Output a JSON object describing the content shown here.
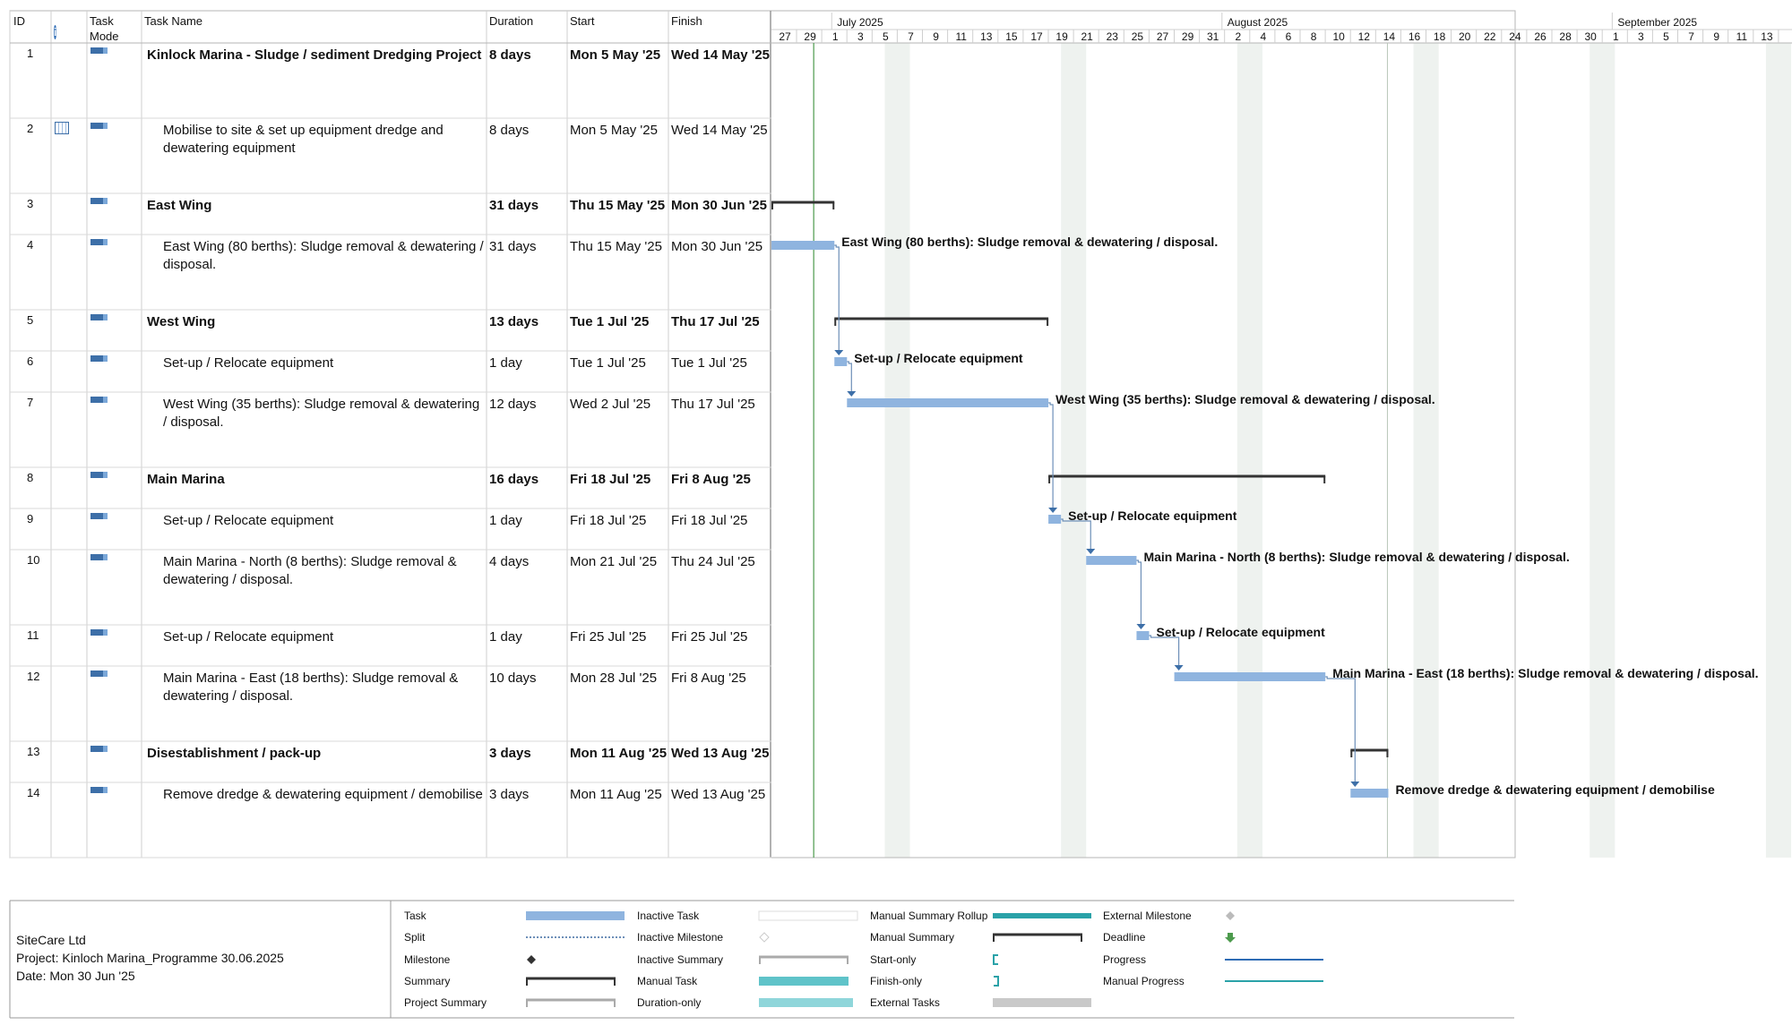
{
  "columns": {
    "id": "ID",
    "info_icon": "info-icon",
    "task_mode": [
      "Task",
      "Mode"
    ],
    "task_name": "Task Name",
    "duration": "Duration",
    "start": "Start",
    "finish": "Finish"
  },
  "timescale": {
    "months": [
      "July 2025",
      "August 2025",
      "September 2025"
    ],
    "days": [
      "27",
      "29",
      "1",
      "3",
      "5",
      "7",
      "9",
      "11",
      "13",
      "15",
      "17",
      "19",
      "21",
      "23",
      "25",
      "27",
      "29",
      "31",
      "2",
      "4",
      "6",
      "8",
      "10",
      "12",
      "14",
      "16",
      "18",
      "20",
      "22",
      "24",
      "26",
      "28",
      "30",
      "1",
      "3",
      "5",
      "7",
      "9",
      "11",
      "13"
    ]
  },
  "tasks": [
    {
      "id": "1",
      "name": "Kinlock Marina - Sludge / sediment Dredging Project",
      "duration": "8 days",
      "start": "Mon 5 May '25",
      "finish": "Wed 14 May '25",
      "summary": true,
      "indicator": ""
    },
    {
      "id": "2",
      "name": "Mobilise to site & set up equipment dredge and dewatering equipment",
      "duration": "8 days",
      "start": "Mon 5 May '25",
      "finish": "Wed 14 May '25",
      "summary": false,
      "indicator": "calendar-icon"
    },
    {
      "id": "3",
      "name": "East Wing",
      "duration": "31 days",
      "start": "Thu 15 May '25",
      "finish": "Mon 30 Jun '25",
      "summary": true,
      "indicator": ""
    },
    {
      "id": "4",
      "name": "East Wing (80 berths): Sludge removal & dewatering / disposal.",
      "duration": "31 days",
      "start": "Thu 15 May '25",
      "finish": "Mon 30 Jun '25",
      "summary": false,
      "indicator": ""
    },
    {
      "id": "5",
      "name": "West Wing",
      "duration": "13 days",
      "start": "Tue 1 Jul '25",
      "finish": "Thu 17 Jul '25",
      "summary": true,
      "indicator": ""
    },
    {
      "id": "6",
      "name": "Set-up / Relocate equipment",
      "duration": "1 day",
      "start": "Tue 1 Jul '25",
      "finish": "Tue 1 Jul '25",
      "summary": false,
      "indicator": ""
    },
    {
      "id": "7",
      "name": "West Wing (35 berths): Sludge removal & dewatering / disposal.",
      "duration": "12 days",
      "start": "Wed 2 Jul '25",
      "finish": "Thu 17 Jul '25",
      "summary": false,
      "indicator": ""
    },
    {
      "id": "8",
      "name": "Main Marina",
      "duration": "16 days",
      "start": "Fri 18 Jul '25",
      "finish": "Fri 8 Aug '25",
      "summary": true,
      "indicator": ""
    },
    {
      "id": "9",
      "name": "Set-up / Relocate equipment",
      "duration": "1 day",
      "start": "Fri 18 Jul '25",
      "finish": "Fri 18 Jul '25",
      "summary": false,
      "indicator": ""
    },
    {
      "id": "10",
      "name": "Main Marina - North (8 berths): Sludge removal & dewatering / disposal.",
      "duration": "4 days",
      "start": "Mon 21 Jul '25",
      "finish": "Thu 24 Jul '25",
      "summary": false,
      "indicator": ""
    },
    {
      "id": "11",
      "name": "Set-up / Relocate equipment",
      "duration": "1 day",
      "start": "Fri 25 Jul '25",
      "finish": "Fri 25 Jul '25",
      "summary": false,
      "indicator": ""
    },
    {
      "id": "12",
      "name": "Main Marina - East (18 berths): Sludge removal & dewatering / disposal.",
      "duration": "10 days",
      "start": "Mon 28 Jul '25",
      "finish": "Fri 8 Aug '25",
      "summary": false,
      "indicator": ""
    },
    {
      "id": "13",
      "name": "Disestablishment / pack-up",
      "duration": "3 days",
      "start": "Mon 11 Aug '25",
      "finish": "Wed 13 Aug '25",
      "summary": true,
      "indicator": ""
    },
    {
      "id": "14",
      "name": "Remove dredge & dewatering equipment / demobilise",
      "duration": "3 days",
      "start": "Mon 11 Aug '25",
      "finish": "Wed 13 Aug '25",
      "summary": false,
      "indicator": ""
    }
  ],
  "bar_labels": {
    "4": "East Wing (80 berths): Sludge removal & dewatering / disposal.",
    "6": "Set-up / Relocate equipment",
    "7": "West Wing (35 berths): Sludge removal & dewatering / disposal.",
    "9": "Set-up / Relocate equipment",
    "10": "Main Marina - North (8 berths): Sludge removal & dewatering / disposal.",
    "11": "Set-up / Relocate equipment",
    "12": "Main Marina - East (18 berths): Sludge removal & dewatering / disposal.",
    "14": "Remove dredge & dewatering equipment / demobilise"
  },
  "footer": {
    "company": "SiteCare Ltd",
    "project": "Project: Kinloch Marina_Programme 30.06.2025",
    "date": "Date: Mon 30 Jun '25"
  },
  "legend": [
    [
      "Task",
      "Inactive Task",
      "Manual Summary Rollup",
      "External Milestone"
    ],
    [
      "Split",
      "Inactive Milestone",
      "Manual Summary",
      "Deadline"
    ],
    [
      "Milestone",
      "Inactive Summary",
      "Start-only",
      "Progress"
    ],
    [
      "Summary",
      "Manual Task",
      "Finish-only",
      "Manual Progress"
    ],
    [
      "Project Summary",
      "Duration-only",
      "External Tasks",
      ""
    ]
  ],
  "colors": {
    "task_bar": "#8fb4df",
    "summary_bar": "#333333",
    "manual": "#5fc3c9",
    "grid": "#c8c8c8",
    "weekend_shade": "#eef2ef",
    "today_line": "#4c9a4c",
    "link": "#6d8fb8"
  }
}
